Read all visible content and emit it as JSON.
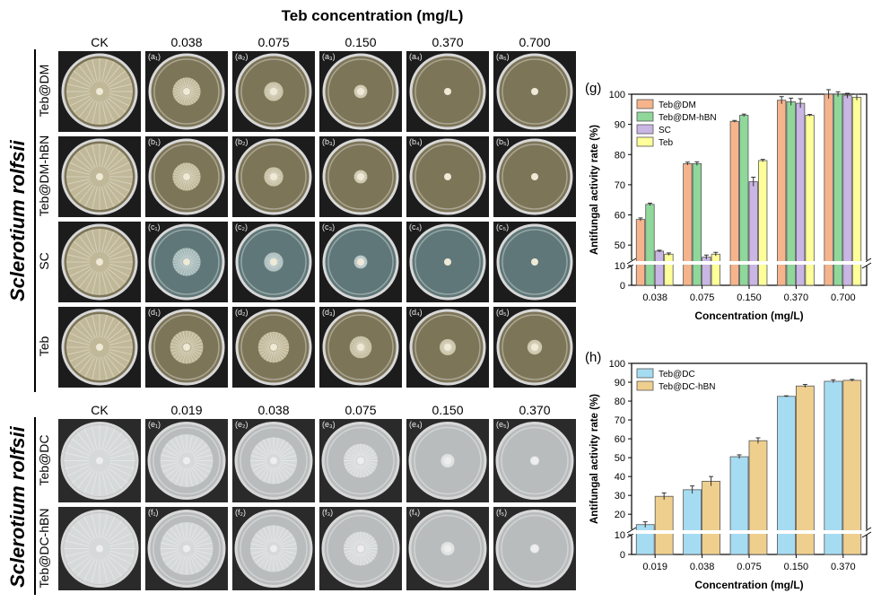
{
  "top": {
    "title": "Teb concentration (mg/L)",
    "columns": [
      "CK",
      "0.038",
      "0.075",
      "0.150",
      "0.370",
      "0.700"
    ]
  },
  "top_rows": [
    {
      "label": "Teb@DM",
      "tags": [
        "",
        "(a₁)",
        "(a₂)",
        "(a₃)",
        "(a₄)",
        "(a₅)"
      ]
    },
    {
      "label": "Teb@DM-hBN",
      "tags": [
        "",
        "(b₁)",
        "(b₂)",
        "(b₃)",
        "(b₄)",
        "(b₅)"
      ]
    },
    {
      "label": "SC",
      "tags": [
        "",
        "(c₁)",
        "(c₂)",
        "(c₃)",
        "(c₄)",
        "(c₅)"
      ]
    },
    {
      "label": "Teb",
      "tags": [
        "",
        "(d₁)",
        "(d₂)",
        "(d₃)",
        "(d₄)",
        "(d₅)"
      ]
    }
  ],
  "bottom": {
    "columns": [
      "CK",
      "0.019",
      "0.038",
      "0.075",
      "0.150",
      "0.370"
    ]
  },
  "bottom_rows": [
    {
      "label": "Teb@DC",
      "tags": [
        "",
        "(e₁)",
        "(e₂)",
        "(e₃)",
        "(e₄)",
        "(e₅)"
      ]
    },
    {
      "label": "Teb@DC-hBN",
      "tags": [
        "",
        "(f₁)",
        "(f₂)",
        "(f₃)",
        "(f₄)",
        "(f₅)"
      ]
    }
  ],
  "species": "Sclerotium rolfsii",
  "chart_data": [
    {
      "panel": "(g)",
      "type": "bar",
      "categories": [
        "0.038",
        "0.075",
        "0.150",
        "0.370",
        "0.700"
      ],
      "xlabel": "Concentration (mg/L)",
      "ylabel": "Antifungal activity rate (%)",
      "yticks": [
        "0",
        "10",
        "50",
        "60",
        "70",
        "80",
        "90",
        "100"
      ],
      "ylim": [
        0,
        100
      ],
      "axis_break": [
        10,
        45
      ],
      "series": [
        {
          "name": "Teb@DM",
          "color": "#f6b48c",
          "values": [
            58.5,
            77.0,
            91.0,
            98.0,
            100.0
          ],
          "errors": [
            0.5,
            0.5,
            0.3,
            1.2,
            1.5
          ]
        },
        {
          "name": "Teb@DM-hBN",
          "color": "#8fd89a",
          "values": [
            63.5,
            77.0,
            93.0,
            97.5,
            100.0
          ],
          "errors": [
            0.4,
            0.6,
            0.4,
            1.2,
            0.8
          ]
        },
        {
          "name": "SC",
          "color": "#c9b6e4",
          "values": [
            48.0,
            46.0,
            71.0,
            97.0,
            99.5
          ],
          "errors": [
            0.3,
            0.7,
            1.5,
            1.5,
            0.8
          ]
        },
        {
          "name": "Teb",
          "color": "#ffff99",
          "values": [
            47.0,
            47.0,
            78.0,
            93.0,
            99.0
          ],
          "errors": [
            0.4,
            0.6,
            0.4,
            0.3,
            1.0
          ]
        }
      ]
    },
    {
      "panel": "(h)",
      "type": "bar",
      "categories": [
        "0.019",
        "0.038",
        "0.075",
        "0.150",
        "0.370"
      ],
      "xlabel": "Concentration (mg/L)",
      "ylabel": "Antifungal activity rate (%)",
      "yticks": [
        "0",
        "10",
        "20",
        "30",
        "40",
        "50",
        "60",
        "70",
        "80",
        "90",
        "100"
      ],
      "ylim": [
        0,
        100
      ],
      "axis_break": [
        10,
        12
      ],
      "series": [
        {
          "name": "Teb@DC",
          "color": "#a6dcf2",
          "values": [
            14.5,
            33.0,
            50.5,
            82.5,
            90.5
          ],
          "errors": [
            1.5,
            2.0,
            1.0,
            0.3,
            0.8
          ]
        },
        {
          "name": "Teb@DC-hBN",
          "color": "#efcf8e",
          "values": [
            29.5,
            37.5,
            59.0,
            88.0,
            91.0
          ],
          "errors": [
            1.8,
            2.5,
            1.5,
            0.8,
            0.5
          ]
        }
      ]
    }
  ]
}
